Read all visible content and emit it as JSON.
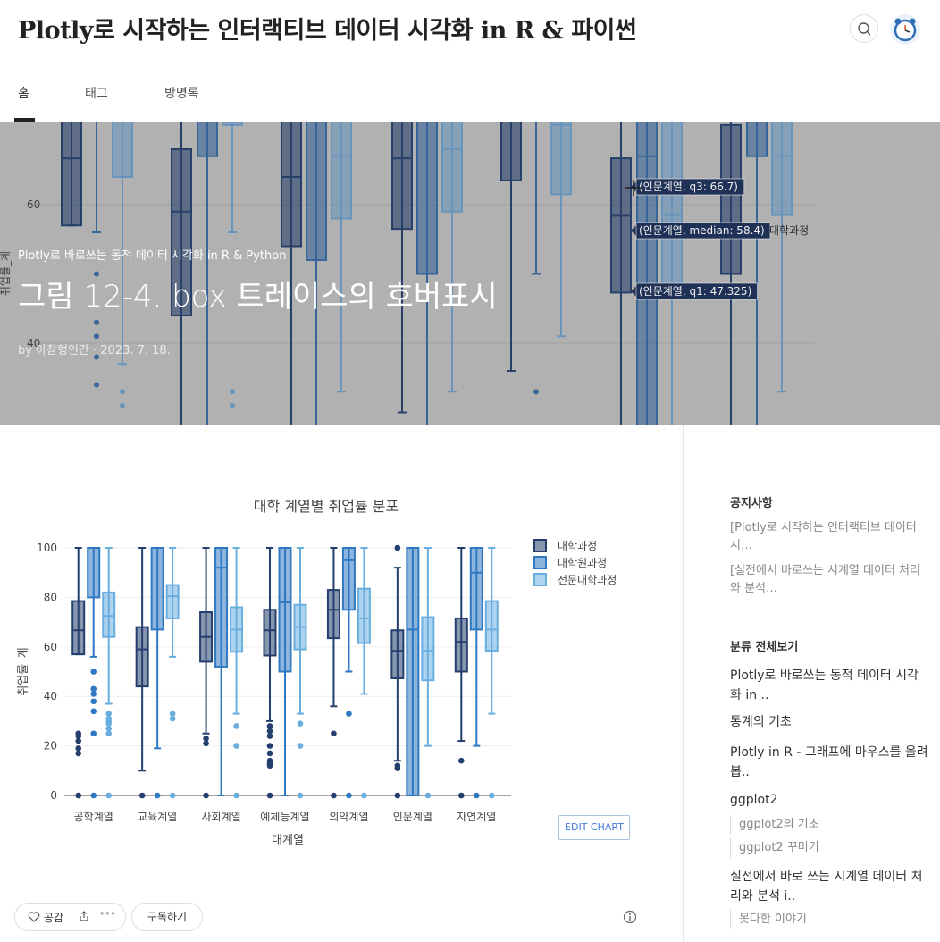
{
  "blog": {
    "title": "Plotly로 시작하는 인터랙티브 데이터 시각화 in R & 파이썬"
  },
  "nav": {
    "tabs": [
      "홈",
      "태그",
      "방명록"
    ],
    "active": 0
  },
  "hero": {
    "category": "Plotly로 바로쓰는 동적 데이터 시각화 in R & Python",
    "title": "그림 12-4. box 트레이스의 호버표시",
    "meta": "by 아참형인간 · 2023. 7. 18.",
    "bg_chart": {
      "y_ticks": [
        "60",
        "40"
      ],
      "y_label": "취업률_계",
      "hover_labels": [
        "(인문계열, q3: 66.7)",
        "(인문계열, median: 58.4)",
        "(인문계열, q1: 47.325)"
      ],
      "hover_series": "대학과정"
    }
  },
  "chart_data": {
    "type": "box",
    "title": "대학 계열별 취업률 분포",
    "xlabel": "대계열",
    "ylabel": "취업률_계",
    "ylim": [
      0,
      100
    ],
    "y_ticks": [
      0,
      20,
      40,
      60,
      80,
      100
    ],
    "categories": [
      "공학계열",
      "교육계열",
      "사회계열",
      "예체능계열",
      "의약계열",
      "인문계열",
      "자연계열"
    ],
    "legend_position": "top-right",
    "series": [
      {
        "name": "대학과정",
        "color": "#243f6e",
        "boxes": [
          {
            "lower": 57,
            "q1": 57,
            "median": 66.7,
            "q3": 78.5,
            "upper": 100,
            "min": 0,
            "outliers": [
              25,
              24,
              22,
              19,
              17,
              0
            ]
          },
          {
            "lower": 10,
            "q1": 44,
            "median": 59,
            "q3": 68,
            "upper": 100,
            "min": 10,
            "outliers": [
              0
            ]
          },
          {
            "lower": 25,
            "q1": 54,
            "median": 64,
            "q3": 74,
            "upper": 100,
            "min": 25,
            "outliers": [
              23,
              21,
              0
            ]
          },
          {
            "lower": 30,
            "q1": 56.5,
            "median": 66.7,
            "q3": 75,
            "upper": 100,
            "min": 30,
            "outliers": [
              28,
              26,
              24,
              20,
              17,
              14,
              13,
              12,
              0
            ]
          },
          {
            "lower": 36,
            "q1": 63.5,
            "median": 75,
            "q3": 83,
            "upper": 100,
            "min": 36,
            "outliers": [
              25,
              0
            ]
          },
          {
            "lower": 14,
            "q1": 47.3,
            "median": 58.4,
            "q3": 66.7,
            "upper": 92,
            "min": 14,
            "outliers": [
              100,
              12,
              11,
              0
            ]
          },
          {
            "lower": 22,
            "q1": 50,
            "median": 62,
            "q3": 71.5,
            "upper": 100,
            "min": 22,
            "outliers": [
              14,
              0
            ]
          }
        ]
      },
      {
        "name": "대학원과정",
        "color": "#2f78c2",
        "boxes": [
          {
            "lower": 56,
            "q1": 80,
            "median": 100,
            "q3": 100,
            "upper": 100,
            "min": 56,
            "outliers": [
              50,
              43,
              41,
              38,
              34,
              25,
              0
            ]
          },
          {
            "lower": 19,
            "q1": 67,
            "median": 100,
            "q3": 100,
            "upper": 100,
            "min": 19,
            "outliers": [
              0
            ]
          },
          {
            "lower": 0,
            "q1": 52,
            "median": 92,
            "q3": 100,
            "upper": 100,
            "min": 0,
            "outliers": []
          },
          {
            "lower": 0,
            "q1": 50,
            "median": 78,
            "q3": 100,
            "upper": 100,
            "min": 0,
            "outliers": []
          },
          {
            "lower": 50,
            "q1": 75,
            "median": 95,
            "q3": 100,
            "upper": 100,
            "min": 50,
            "outliers": [
              33,
              0
            ]
          },
          {
            "lower": 0,
            "q1": 0,
            "median": 67,
            "q3": 100,
            "upper": 100,
            "min": 0,
            "outliers": []
          },
          {
            "lower": 20,
            "q1": 67,
            "median": 90,
            "q3": 100,
            "upper": 100,
            "min": 20,
            "outliers": [
              0
            ]
          }
        ]
      },
      {
        "name": "전문대학과정",
        "color": "#6aaee0",
        "boxes": [
          {
            "lower": 37,
            "q1": 64,
            "median": 72.5,
            "q3": 82,
            "upper": 100,
            "min": 37,
            "outliers": [
              33,
              31,
              30,
              29,
              27,
              25,
              0
            ]
          },
          {
            "lower": 56,
            "q1": 71.5,
            "median": 80.5,
            "q3": 85,
            "upper": 100,
            "min": 56,
            "outliers": [
              33,
              31,
              0
            ]
          },
          {
            "lower": 33,
            "q1": 58,
            "median": 67,
            "q3": 76,
            "upper": 100,
            "min": 33,
            "outliers": [
              28,
              20,
              0
            ]
          },
          {
            "lower": 33,
            "q1": 59,
            "median": 68,
            "q3": 77,
            "upper": 100,
            "min": 33,
            "outliers": [
              29,
              20,
              0
            ]
          },
          {
            "lower": 41,
            "q1": 61.5,
            "median": 71.5,
            "q3": 83.5,
            "upper": 100,
            "min": 41,
            "outliers": [
              0
            ]
          },
          {
            "lower": 20,
            "q1": 46.5,
            "median": 58.5,
            "q3": 72,
            "upper": 100,
            "min": 20,
            "outliers": [
              0
            ]
          },
          {
            "lower": 33,
            "q1": 58.5,
            "median": 67,
            "q3": 78.5,
            "upper": 100,
            "min": 33,
            "outliers": [
              0
            ]
          }
        ]
      }
    ]
  },
  "edit_chart": "EDIT CHART",
  "actions": {
    "like": "공감",
    "subscribe": "구독하기",
    "more": "∘∘∘"
  },
  "sidebar": {
    "notice_head": "공지사항",
    "notices": [
      "[Plotly로 시작하는 인터랙티브 데이터 시…",
      "[실전에서 바로쓰는 시계열 데이터 처리와 분석…"
    ],
    "category_head": "분류 전체보기",
    "categories": [
      "Plotly로 바로쓰는 동적 데이터 시각화 in ..",
      "통계의 기초",
      "Plotly in R - 그래프에 마우스를 올려봅..",
      "ggplot2",
      "실전에서 바로 쓰는 시계열 데이터 처리와 분석 i.."
    ],
    "subcategories": [
      "ggplot2의 기초",
      "ggplot2 꾸미기",
      "못다한 이야기"
    ]
  },
  "icons": {
    "search": "search-icon",
    "avatar": "alarm-clock-avatar-icon",
    "heart": "heart-icon",
    "share": "share-icon",
    "info": "info-icon"
  }
}
